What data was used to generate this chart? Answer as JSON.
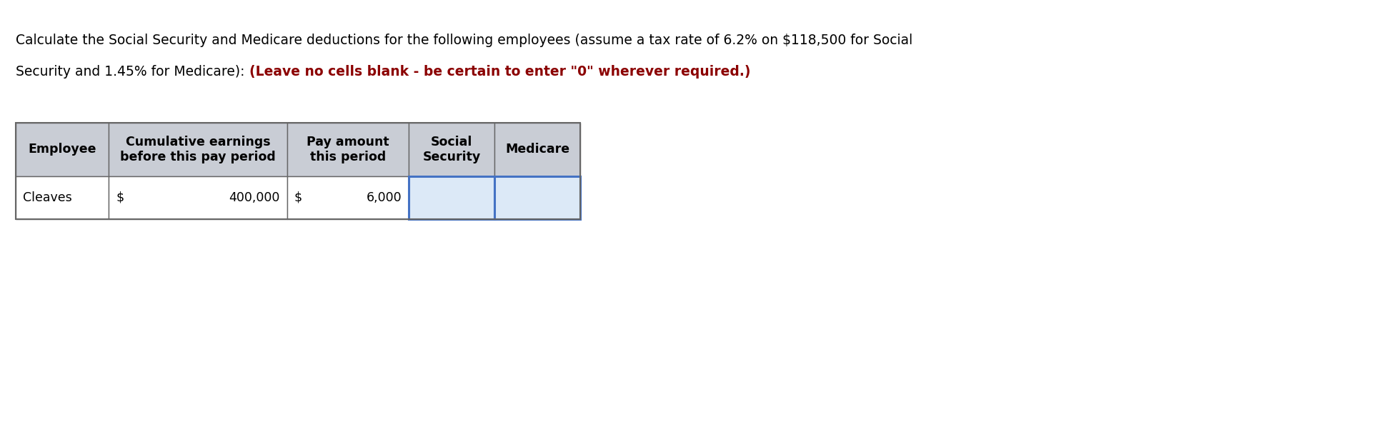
{
  "line1": "Calculate the Social Security and Medicare deductions for the following employees (assume a tax rate of 6.2% on $118,500 for Social",
  "line2_normal": "Security and 1.45% for Medicare): ",
  "line2_bold_red": "(Leave no cells blank - be certain to enter \"0\" wherever required.)",
  "col_headers": [
    "Employee",
    "Cumulative earnings\nbefore this pay period",
    "Pay amount\nthis period",
    "Social\nSecurity",
    "Medicare"
  ],
  "header_bg": "#c9cdd5",
  "data_row_bg_white": "#ffffff",
  "data_row_bg_blue": "#dce9f7",
  "border_color": "#666666",
  "blue_border_color": "#4472c4",
  "fig_bg": "#ffffff",
  "title_fontsize": 13.5,
  "table_fontsize": 12.5,
  "fig_width": 19.3,
  "fig_height": 6.22
}
